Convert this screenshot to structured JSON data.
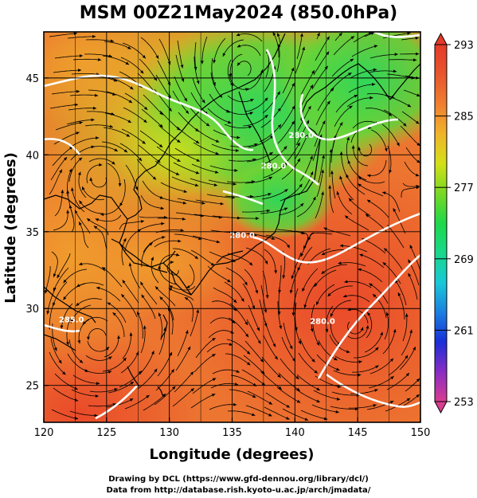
{
  "title": "MSM 00Z21May2024 (850.0hPa)",
  "map": {
    "xlabel": "Longitude (degrees)",
    "ylabel": "Latitude  (degrees)",
    "lon_range": [
      120,
      150
    ],
    "lat_range": [
      22.6,
      48
    ],
    "lon_ticks": [
      "120",
      "125",
      "130",
      "135",
      "140",
      "145",
      "150"
    ],
    "lat_ticks": [
      "25",
      "30",
      "35",
      "40",
      "45"
    ],
    "grid": true
  },
  "contours": [
    {
      "label": "285.0",
      "lon": 122.2,
      "lat": 29.1
    },
    {
      "label": "280.0",
      "lon": 135.8,
      "lat": 34.6
    },
    {
      "label": "280.0",
      "lon": 140.5,
      "lat": 41.1
    },
    {
      "label": "280.0",
      "lon": 138.3,
      "lat": 39.1
    },
    {
      "label": "280.0",
      "lon": 142.2,
      "lat": 29.0
    }
  ],
  "colorbar": {
    "min": 253,
    "max": 293,
    "ticks": [
      "293",
      "285",
      "277",
      "269",
      "261",
      "253"
    ],
    "colors": [
      "#d93d8f",
      "#8a2cc4",
      "#1a2fd8",
      "#1a7fe0",
      "#19c8d8",
      "#19d88a",
      "#1fd84a",
      "#78d824",
      "#d4e018",
      "#f0b42a",
      "#f07e30",
      "#e8562c",
      "#e53a2a"
    ]
  },
  "credits": {
    "line1": "Drawing by DCL (https://www.gfd-dennou.org/library/dcl/)",
    "line2": "Data from http://database.rish.kyoto-u.ac.jp/arch/jmadata/"
  }
}
